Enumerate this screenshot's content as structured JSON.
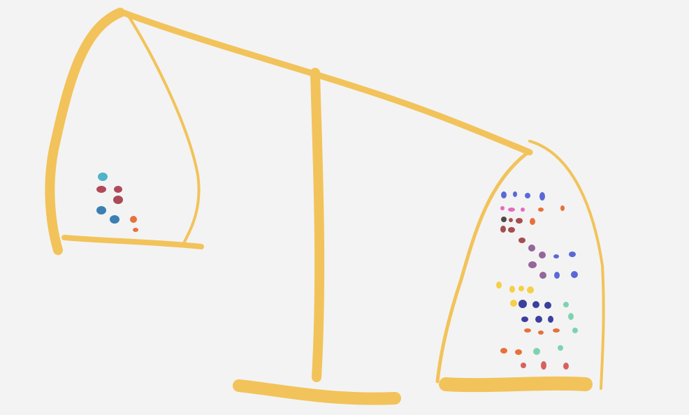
{
  "colors": {
    "background": "#f3f3f3",
    "scale": "#f2c35a"
  },
  "left_pan": {
    "dot_count": 8,
    "dot_colors": [
      "#4fb3c9",
      "#b04a5a",
      "#3a7fb3",
      "#e8703a"
    ]
  },
  "right_pan": {
    "dot_count": 60,
    "dot_colors": [
      "#5b68d6",
      "#e46bbf",
      "#e8703a",
      "#a54e4e",
      "#4a4a4a",
      "#94669a",
      "#f5cf46",
      "#3c3f9e",
      "#7dd3b0",
      "#d9605f"
    ]
  }
}
